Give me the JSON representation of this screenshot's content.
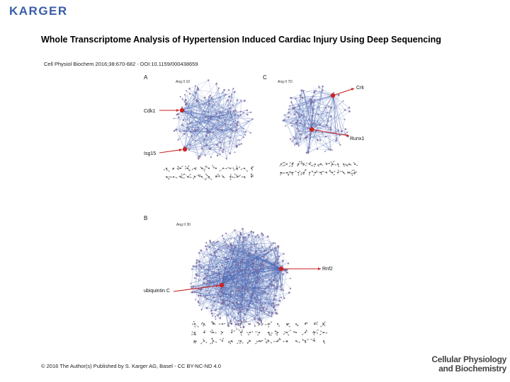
{
  "publisher_logo": "KARGER",
  "title": "Whole Transcriptome Analysis of Hypertension Induced Cardiac Injury Using Deep Sequencing",
  "citation": "Cell Physiol Biochem 2016;38:670-682 - DOI:10.1159/000438659",
  "panels": {
    "a": {
      "label": "A",
      "condition": "Ang II 10",
      "genes": [
        "Cdk1",
        "Isg15"
      ]
    },
    "b": {
      "label": "B",
      "condition": "Ang II 30",
      "genes": [
        "Rnf2",
        "ubiquintin C"
      ]
    },
    "c": {
      "label": "C",
      "condition": "Ang II 7D",
      "genes": [
        "Crk",
        "Runx1"
      ]
    }
  },
  "copyright": "© 2016 The Author(s) Published by S. Karger AG, Basel - CC BY-NC-ND 4.0",
  "journal": {
    "line1": "Cellular Physiology",
    "line2": "and Biochemistry"
  },
  "colors": {
    "network_edge": "#3f5fb0",
    "network_node": "#7e6a9e",
    "highlight": "#cc2222",
    "logo": "#3a5da8"
  }
}
